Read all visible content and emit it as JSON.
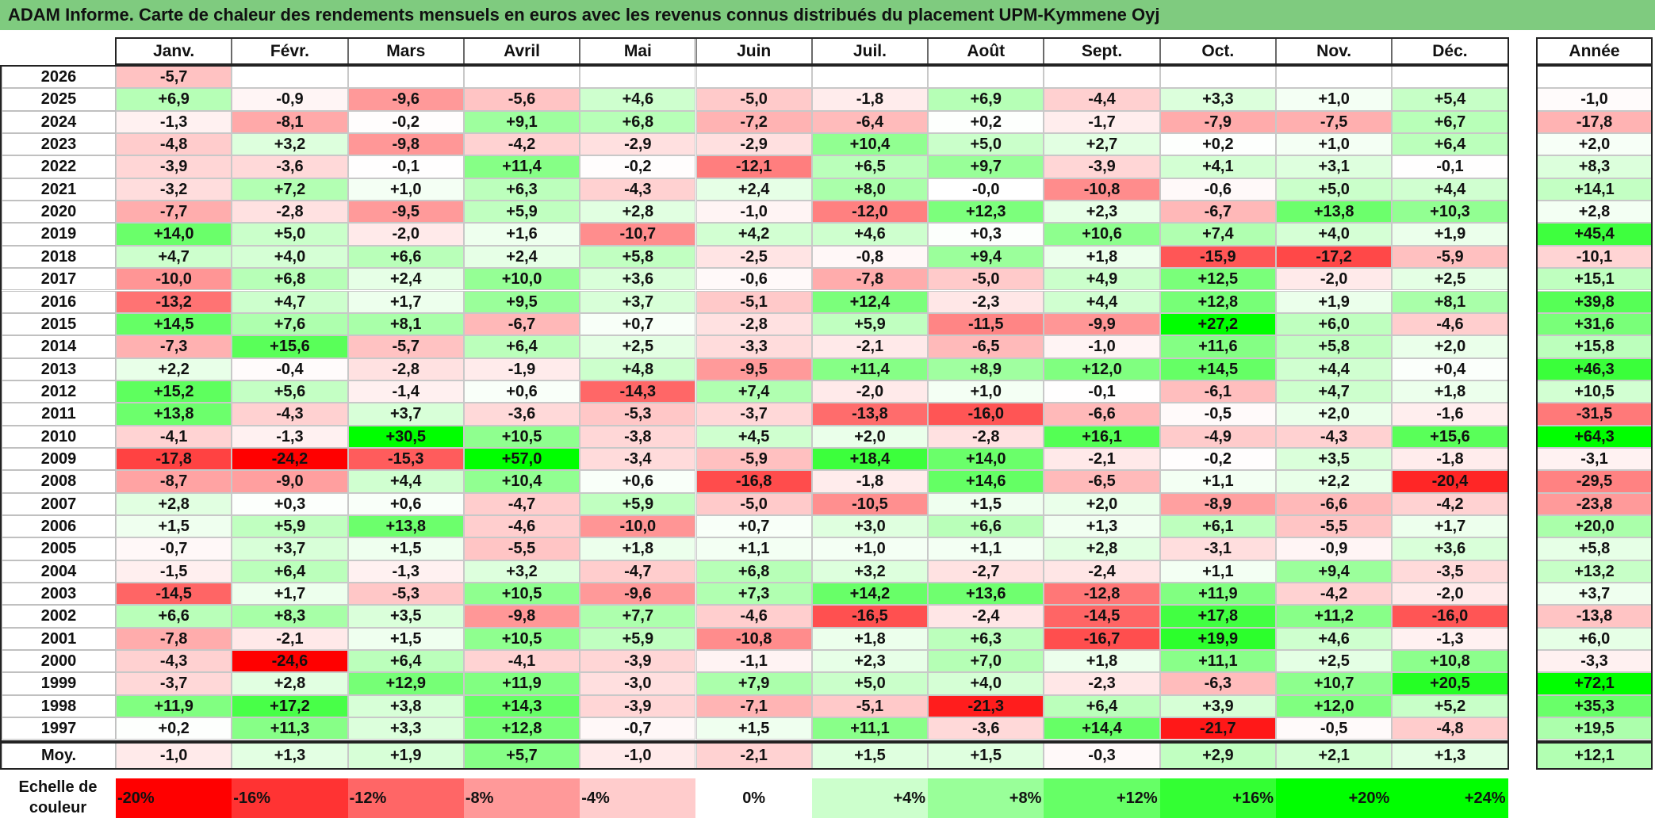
{
  "title": "ADAM Informe. Carte de chaleur des rendements mensuels en euros avec les revenus connus distribués du placement UPM-Kymmene Oyj",
  "chart_data": {
    "type": "heatmap",
    "title": "ADAM Informe. Carte de chaleur des rendements mensuels en euros avec les revenus connus distribués du placement UPM-Kymmene Oyj",
    "columns": [
      "Janv.",
      "Févr.",
      "Mars",
      "Avril",
      "Mai",
      "Juin",
      "Juil.",
      "Août",
      "Sept.",
      "Oct.",
      "Nov.",
      "Déc."
    ],
    "year_column_label": "Année",
    "rows": [
      {
        "year": "2026",
        "months": [
          "-5,7",
          "",
          "",
          "",
          "",
          "",
          "",
          "",
          "",
          "",
          "",
          ""
        ],
        "annual": ""
      },
      {
        "year": "2025",
        "months": [
          "+6,9",
          "-0,9",
          "-9,6",
          "-5,6",
          "+4,6",
          "-5,0",
          "-1,8",
          "+6,9",
          "-4,4",
          "+3,3",
          "+1,0",
          "+5,4"
        ],
        "annual": "-1,0"
      },
      {
        "year": "2024",
        "months": [
          "-1,3",
          "-8,1",
          "-0,2",
          "+9,1",
          "+6,8",
          "-7,2",
          "-6,4",
          "+0,2",
          "-1,7",
          "-7,9",
          "-7,5",
          "+6,7"
        ],
        "annual": "-17,8"
      },
      {
        "year": "2023",
        "months": [
          "-4,8",
          "+3,2",
          "-9,8",
          "-4,2",
          "-2,9",
          "-2,9",
          "+10,4",
          "+5,0",
          "+2,7",
          "+0,2",
          "+1,0",
          "+6,4"
        ],
        "annual": "+2,0"
      },
      {
        "year": "2022",
        "months": [
          "-3,9",
          "-3,6",
          "-0,1",
          "+11,4",
          "-0,2",
          "-12,1",
          "+6,5",
          "+9,7",
          "-3,9",
          "+4,1",
          "+3,1",
          "-0,1"
        ],
        "annual": "+8,3"
      },
      {
        "year": "2021",
        "months": [
          "-3,2",
          "+7,2",
          "+1,0",
          "+6,3",
          "-4,3",
          "+2,4",
          "+8,0",
          "-0,0",
          "-10,8",
          "-0,6",
          "+5,0",
          "+4,4"
        ],
        "annual": "+14,1"
      },
      {
        "year": "2020",
        "months": [
          "-7,7",
          "-2,8",
          "-9,5",
          "+5,9",
          "+2,8",
          "-1,0",
          "-12,0",
          "+12,3",
          "+2,3",
          "-6,7",
          "+13,8",
          "+10,3"
        ],
        "annual": "+2,8"
      },
      {
        "year": "2019",
        "months": [
          "+14,0",
          "+5,0",
          "-2,0",
          "+1,6",
          "-10,7",
          "+4,2",
          "+4,6",
          "+0,3",
          "+10,6",
          "+7,4",
          "+4,0",
          "+1,9"
        ],
        "annual": "+45,4"
      },
      {
        "year": "2018",
        "months": [
          "+4,7",
          "+4,0",
          "+6,6",
          "+2,4",
          "+5,8",
          "-2,5",
          "-0,8",
          "+9,4",
          "+1,8",
          "-15,9",
          "-17,2",
          "-5,9"
        ],
        "annual": "-10,1"
      },
      {
        "year": "2017",
        "months": [
          "-10,0",
          "+6,8",
          "+2,4",
          "+10,0",
          "+3,6",
          "-0,6",
          "-7,8",
          "-5,0",
          "+4,9",
          "+12,5",
          "-2,0",
          "+2,5"
        ],
        "annual": "+15,1"
      },
      {
        "year": "2016",
        "months": [
          "-13,2",
          "+4,7",
          "+1,7",
          "+9,5",
          "+3,7",
          "-5,1",
          "+12,4",
          "-2,3",
          "+4,4",
          "+12,8",
          "+1,9",
          "+8,1"
        ],
        "annual": "+39,8"
      },
      {
        "year": "2015",
        "months": [
          "+14,5",
          "+7,6",
          "+8,1",
          "-6,7",
          "+0,7",
          "-2,8",
          "+5,9",
          "-11,5",
          "-9,9",
          "+27,2",
          "+6,0",
          "-4,6"
        ],
        "annual": "+31,6"
      },
      {
        "year": "2014",
        "months": [
          "-7,3",
          "+15,6",
          "-5,7",
          "+6,4",
          "+2,5",
          "-3,3",
          "-2,1",
          "-6,5",
          "-1,0",
          "+11,6",
          "+5,8",
          "+2,0"
        ],
        "annual": "+15,8"
      },
      {
        "year": "2013",
        "months": [
          "+2,2",
          "-0,4",
          "-2,8",
          "-1,9",
          "+4,8",
          "-9,5",
          "+11,4",
          "+8,9",
          "+12,0",
          "+14,5",
          "+4,4",
          "+0,4"
        ],
        "annual": "+46,3"
      },
      {
        "year": "2012",
        "months": [
          "+15,2",
          "+5,6",
          "-1,4",
          "+0,6",
          "-14,3",
          "+7,4",
          "-2,0",
          "+1,0",
          "-0,1",
          "-6,1",
          "+4,7",
          "+1,8"
        ],
        "annual": "+10,5"
      },
      {
        "year": "2011",
        "months": [
          "+13,8",
          "-4,3",
          "+3,7",
          "-3,6",
          "-5,3",
          "-3,7",
          "-13,8",
          "-16,0",
          "-6,6",
          "-0,5",
          "+2,0",
          "-1,6"
        ],
        "annual": "-31,5"
      },
      {
        "year": "2010",
        "months": [
          "-4,1",
          "-1,3",
          "+30,5",
          "+10,5",
          "-3,8",
          "+4,5",
          "+2,0",
          "-2,8",
          "+16,1",
          "-4,9",
          "-4,3",
          "+15,6"
        ],
        "annual": "+64,3"
      },
      {
        "year": "2009",
        "months": [
          "-17,8",
          "-24,2",
          "-15,3",
          "+57,0",
          "-3,4",
          "-5,9",
          "+18,4",
          "+14,0",
          "-2,1",
          "-0,2",
          "+3,5",
          "-1,8"
        ],
        "annual": "-3,1"
      },
      {
        "year": "2008",
        "months": [
          "-8,7",
          "-9,0",
          "+4,4",
          "+10,4",
          "+0,6",
          "-16,8",
          "-1,8",
          "+14,6",
          "-6,5",
          "+1,1",
          "+2,2",
          "-20,4"
        ],
        "annual": "-29,5"
      },
      {
        "year": "2007",
        "months": [
          "+2,8",
          "+0,3",
          "+0,6",
          "-4,7",
          "+5,9",
          "-5,0",
          "-10,5",
          "+1,5",
          "+2,0",
          "-8,9",
          "-6,6",
          "-4,2"
        ],
        "annual": "-23,8"
      },
      {
        "year": "2006",
        "months": [
          "+1,5",
          "+5,9",
          "+13,8",
          "-4,6",
          "-10,0",
          "+0,7",
          "+3,0",
          "+6,6",
          "+1,3",
          "+6,1",
          "-5,5",
          "+1,7"
        ],
        "annual": "+20,0"
      },
      {
        "year": "2005",
        "months": [
          "-0,7",
          "+3,7",
          "+1,5",
          "-5,5",
          "+1,8",
          "+1,1",
          "+1,0",
          "+1,1",
          "+2,8",
          "-3,1",
          "-0,9",
          "+3,6"
        ],
        "annual": "+5,8"
      },
      {
        "year": "2004",
        "months": [
          "-1,5",
          "+6,4",
          "-1,3",
          "+3,2",
          "-4,7",
          "+6,8",
          "+3,2",
          "-2,7",
          "-2,4",
          "+1,1",
          "+9,4",
          "-3,5"
        ],
        "annual": "+13,2"
      },
      {
        "year": "2003",
        "months": [
          "-14,5",
          "+1,7",
          "-5,3",
          "+10,5",
          "-9,6",
          "+7,3",
          "+14,2",
          "+13,6",
          "-12,8",
          "+11,9",
          "-4,2",
          "-2,0"
        ],
        "annual": "+3,7"
      },
      {
        "year": "2002",
        "months": [
          "+6,6",
          "+8,3",
          "+3,5",
          "-9,8",
          "+7,7",
          "-4,6",
          "-16,5",
          "-2,4",
          "-14,5",
          "+17,8",
          "+11,2",
          "-16,0"
        ],
        "annual": "-13,8"
      },
      {
        "year": "2001",
        "months": [
          "-7,8",
          "-2,1",
          "+1,5",
          "+10,5",
          "+5,9",
          "-10,8",
          "+1,8",
          "+6,3",
          "-16,7",
          "+19,9",
          "+4,6",
          "-1,3"
        ],
        "annual": "+6,0"
      },
      {
        "year": "2000",
        "months": [
          "-4,3",
          "-24,6",
          "+6,4",
          "-4,1",
          "-3,9",
          "-1,1",
          "+2,3",
          "+7,0",
          "+1,8",
          "+11,1",
          "+2,5",
          "+10,8"
        ],
        "annual": "-3,3"
      },
      {
        "year": "1999",
        "months": [
          "-3,7",
          "+2,8",
          "+12,9",
          "+11,9",
          "-3,0",
          "+7,9",
          "+5,0",
          "+4,0",
          "-2,3",
          "-6,3",
          "+10,7",
          "+20,5"
        ],
        "annual": "+72,1"
      },
      {
        "year": "1998",
        "months": [
          "+11,9",
          "+17,2",
          "+3,8",
          "+14,3",
          "-3,9",
          "-7,1",
          "-5,1",
          "-21,3",
          "+6,4",
          "+3,9",
          "+12,0",
          "+5,2"
        ],
        "annual": "+35,3"
      },
      {
        "year": "1997",
        "months": [
          "+0,2",
          "+11,3",
          "+3,3",
          "+12,8",
          "-0,7",
          "+1,5",
          "+11,1",
          "-3,6",
          "+14,4",
          "-21,7",
          "-0,5",
          "-4,8"
        ],
        "annual": "+19,5"
      }
    ],
    "average": {
      "label": "Moy.",
      "months": [
        "-1,0",
        "+1,3",
        "+1,9",
        "+5,7",
        "-1,0",
        "-2,1",
        "+1,5",
        "+1,5",
        "-0,3",
        "+2,9",
        "+2,1",
        "+1,3"
      ],
      "annual": "+12,1"
    },
    "color_scale": {
      "label": "Echelle de couleur",
      "stops": [
        "-20%",
        "-16%",
        "-12%",
        "-8%",
        "-4%",
        "0%",
        "+4%",
        "+8%",
        "+12%",
        "+16%",
        "+20%",
        "+24%"
      ],
      "negative_color": "#ff0000",
      "positive_color": "#00ff00",
      "neutral_color": "#ffffff"
    }
  }
}
